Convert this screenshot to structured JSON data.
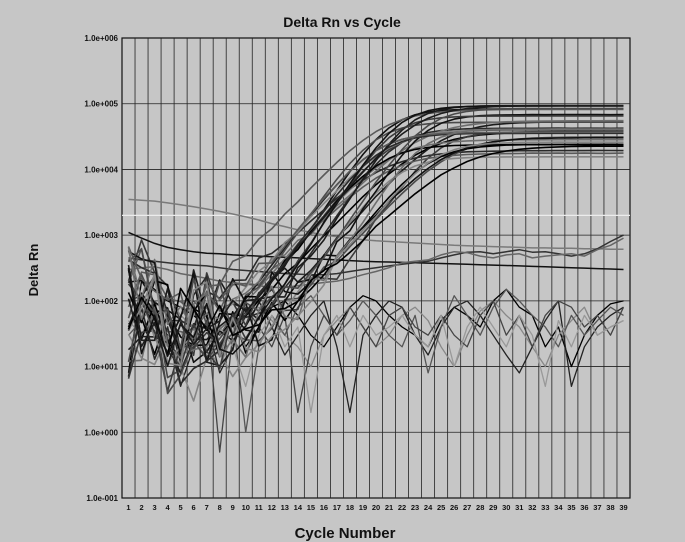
{
  "chart_data": {
    "type": "line",
    "title": "Delta Rn vs Cycle",
    "xlabel": "Cycle Number",
    "ylabel": "Delta Rn",
    "x": [
      1,
      2,
      3,
      4,
      5,
      6,
      7,
      8,
      9,
      10,
      11,
      12,
      13,
      14,
      15,
      16,
      17,
      18,
      19,
      20,
      21,
      22,
      23,
      24,
      25,
      26,
      27,
      28,
      29,
      30,
      31,
      32,
      33,
      34,
      35,
      36,
      37,
      38,
      39
    ],
    "y_scale": "log",
    "ylim": [
      0.1,
      1000000
    ],
    "y_ticks": [
      "1.0e-001",
      "1.0e+000",
      "1.0e+001",
      "1.0e+002",
      "1.0e+003",
      "1.0e+004",
      "1.0e+005",
      "1.0e+006"
    ],
    "x_ticks": [
      "1",
      "2",
      "3",
      "4",
      "5",
      "6",
      "7",
      "8",
      "9",
      "10",
      "11",
      "12",
      "13",
      "14",
      "15",
      "16",
      "17",
      "18",
      "19",
      "20",
      "21",
      "22",
      "23",
      "24",
      "25",
      "26",
      "27",
      "28",
      "29",
      "30",
      "31",
      "32",
      "33",
      "34",
      "35",
      "36",
      "37",
      "38",
      "39"
    ],
    "threshold": 2000,
    "grid": true,
    "legend": "none",
    "amplification_curves": {
      "count": 30,
      "pre_amp_noise_range": [
        2,
        300
      ],
      "plateau_range": [
        15000,
        95000
      ],
      "midpoint_cycle_range": [
        19,
        27
      ]
    },
    "background_series": [
      {
        "color": "#7a7a7a",
        "values": [
          3500,
          3400,
          3300,
          3100,
          2900,
          2700,
          2500,
          2300,
          2100,
          1900,
          1700,
          1500,
          1350,
          1200,
          1100,
          1000,
          950,
          900,
          850,
          820,
          800,
          780,
          760,
          740,
          720,
          700,
          690,
          680,
          670,
          660,
          650,
          640,
          640,
          630,
          630,
          620,
          620,
          610,
          610
        ]
      },
      {
        "color": "#111111",
        "values": [
          1100,
          900,
          750,
          650,
          600,
          560,
          530,
          520,
          500,
          490,
          480,
          470,
          460,
          450,
          440,
          430,
          420,
          410,
          400,
          395,
          390,
          385,
          380,
          375,
          370,
          365,
          360,
          355,
          350,
          345,
          340,
          335,
          330,
          325,
          320,
          315,
          310,
          305,
          300
        ]
      },
      {
        "color": "#333333",
        "values": [
          450,
          420,
          400,
          380,
          360,
          350,
          340,
          320,
          300,
          290,
          280,
          270,
          260,
          255,
          250,
          250,
          260,
          280,
          300,
          320,
          340,
          360,
          380,
          400,
          450,
          500,
          550,
          560,
          520,
          560,
          600,
          550,
          560,
          520,
          480,
          520,
          620,
          800,
          1000
        ]
      },
      {
        "color": "#666666",
        "values": [
          300,
          320,
          330,
          300,
          260,
          240,
          220,
          200,
          190,
          180,
          170,
          160,
          160,
          170,
          180,
          190,
          200,
          220,
          250,
          280,
          320,
          380,
          400,
          420,
          500,
          560,
          540,
          480,
          450,
          500,
          520,
          450,
          480,
          500,
          520,
          480,
          600,
          700,
          900
        ]
      }
    ],
    "noise_series": [
      {
        "color": "#000000",
        "values": [
          8,
          200,
          150,
          100,
          80,
          60,
          40,
          30,
          50,
          20,
          40,
          80,
          100,
          60,
          30,
          20,
          40,
          80,
          120,
          100,
          60,
          40,
          30,
          20,
          50,
          80,
          60,
          40,
          100,
          150,
          80,
          60,
          20,
          40,
          10,
          30,
          60,
          90,
          100
        ]
      },
      {
        "color": "#888888",
        "values": [
          50,
          30,
          80,
          120,
          60,
          40,
          20,
          10,
          30,
          60,
          80,
          50,
          30,
          20,
          10,
          30,
          50,
          80,
          40,
          20,
          30,
          60,
          80,
          50,
          20,
          10,
          30,
          70,
          100,
          60,
          40,
          20,
          10,
          30,
          50,
          80,
          30,
          40,
          50
        ]
      },
      {
        "color": "#222222",
        "values": [
          100,
          120,
          60,
          30,
          5,
          20,
          50,
          8,
          20,
          60,
          100,
          40,
          15,
          30,
          60,
          100,
          20,
          2,
          30,
          60,
          100,
          80,
          30,
          15,
          40,
          80,
          100,
          60,
          30,
          15,
          8,
          20,
          50,
          100,
          5,
          20,
          40,
          60,
          80
        ]
      },
      {
        "color": "#555555",
        "values": [
          30,
          50,
          100,
          60,
          20,
          40,
          80,
          30,
          60,
          1,
          20,
          60,
          30,
          80,
          120,
          60,
          30,
          50,
          100,
          60,
          30,
          20,
          60,
          8,
          40,
          120,
          60,
          30,
          80,
          150,
          100,
          60,
          40,
          20,
          60,
          30,
          50,
          80,
          60
        ]
      },
      {
        "color": "#444444",
        "values": [
          200,
          100,
          50,
          20,
          60,
          100,
          60,
          0.5,
          30,
          80,
          40,
          20,
          60,
          2,
          20,
          60,
          30,
          80,
          40,
          20,
          60,
          80,
          40,
          30,
          60,
          30,
          20,
          60,
          100,
          30,
          60,
          20,
          60,
          100,
          80,
          40,
          60,
          30,
          80
        ]
      },
      {
        "color": "#999999",
        "values": [
          60,
          80,
          40,
          20,
          30,
          60,
          100,
          40,
          20,
          5,
          30,
          60,
          20,
          40,
          2,
          30,
          60,
          20,
          60,
          30,
          40,
          60,
          30,
          20,
          60,
          10,
          40,
          80,
          40,
          20,
          60,
          30,
          5,
          50,
          20,
          60,
          30,
          40,
          50
        ]
      }
    ]
  }
}
